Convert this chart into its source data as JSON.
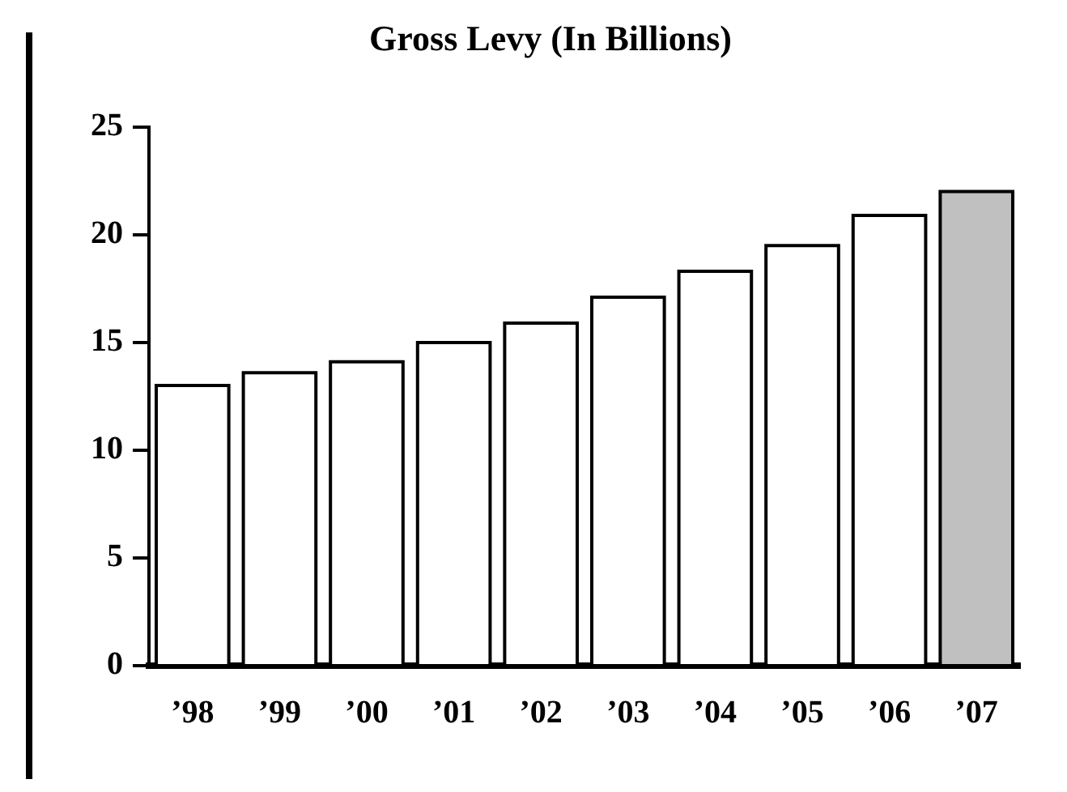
{
  "chart_data": {
    "type": "bar",
    "title": "Gross Levy (In Billions)",
    "categories": [
      "’98",
      "’99",
      "’00",
      "’01",
      "’02",
      "’03",
      "’04",
      "’05",
      "’06",
      "’07"
    ],
    "values": [
      13.0,
      13.6,
      14.1,
      15.0,
      15.9,
      17.1,
      18.3,
      19.5,
      20.9,
      22.0
    ],
    "colors": [
      "#ffffff",
      "#ffffff",
      "#ffffff",
      "#ffffff",
      "#ffffff",
      "#ffffff",
      "#ffffff",
      "#ffffff",
      "#ffffff",
      "#c0c0c0"
    ],
    "ylim": [
      0,
      25
    ],
    "yticks": [
      0,
      5,
      10,
      15,
      20,
      25
    ],
    "grid": false,
    "legend": false
  }
}
